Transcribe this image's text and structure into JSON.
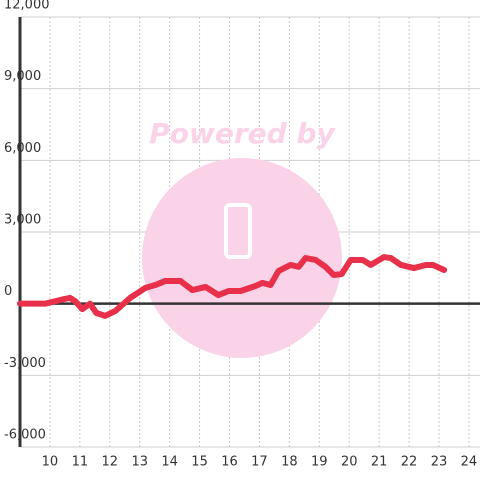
{
  "chart_data": {
    "type": "line",
    "watermark": "Powered by",
    "x": [
      9.0,
      9.84,
      10.5,
      10.67,
      10.84,
      11.08,
      11.34,
      11.55,
      11.85,
      12.18,
      12.68,
      13.19,
      13.52,
      13.86,
      14.36,
      14.76,
      15.2,
      15.63,
      15.97,
      16.37,
      16.87,
      17.1,
      17.37,
      17.64,
      18.04,
      18.31,
      18.54,
      18.88,
      19.21,
      19.48,
      19.75,
      20.05,
      20.45,
      20.72,
      21.16,
      21.39,
      21.73,
      22.16,
      22.56,
      22.8,
      23.17
    ],
    "series": [
      {
        "color": "#e8304a",
        "values": [
          0,
          0,
          200,
          240,
          110,
          -230,
          0,
          -390,
          -510,
          -310,
          240,
          660,
          780,
          950,
          950,
          570,
          700,
          360,
          530,
          530,
          740,
          870,
          780,
          1370,
          1620,
          1540,
          1910,
          1830,
          1540,
          1200,
          1240,
          1830,
          1830,
          1620,
          1950,
          1910,
          1620,
          1490,
          1620,
          1620,
          1410
        ]
      }
    ],
    "xlim": [
      9,
      24.37
    ],
    "xticks": [
      10,
      11,
      12,
      13,
      14,
      15,
      16,
      17,
      18,
      19,
      20,
      21,
      22,
      23,
      24
    ],
    "ylim": [
      -6000,
      12000
    ],
    "yticks": [
      {
        "value": -6000,
        "label": "-6,000"
      },
      {
        "value": -3000,
        "label": "-3,000"
      },
      0,
      {
        "value": 3000,
        "label": "3,000"
      },
      {
        "value": 6000,
        "label": "6,000"
      },
      {
        "value": 9000,
        "label": "9,000"
      },
      {
        "value": 12000,
        "label": "12,000"
      }
    ],
    "grid": true
  }
}
